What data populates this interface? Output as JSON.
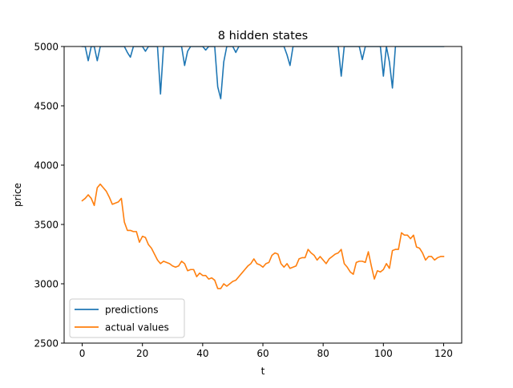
{
  "chart_data": {
    "type": "line",
    "title": "8 hidden states",
    "xlabel": "t",
    "ylabel": "price",
    "xlim": [
      -6,
      126
    ],
    "ylim": [
      2500,
      5000
    ],
    "xticks": [
      0,
      20,
      40,
      60,
      80,
      100,
      120
    ],
    "yticks": [
      2500,
      3000,
      3500,
      4000,
      4500,
      5000
    ],
    "grid": false,
    "legend_position": "lower-left",
    "series": [
      {
        "name": "predictions",
        "color": "#1f77b4",
        "x": [
          0,
          1,
          2,
          3,
          4,
          5,
          6,
          7,
          8,
          9,
          10,
          11,
          12,
          13,
          14,
          15,
          16,
          17,
          18,
          19,
          20,
          21,
          22,
          23,
          24,
          25,
          26,
          27,
          28,
          29,
          30,
          31,
          32,
          33,
          34,
          35,
          36,
          37,
          38,
          39,
          40,
          41,
          42,
          43,
          44,
          45,
          46,
          47,
          48,
          49,
          50,
          51,
          52,
          53,
          54,
          55,
          56,
          57,
          58,
          59,
          60,
          61,
          62,
          63,
          64,
          65,
          66,
          67,
          68,
          69,
          70,
          71,
          72,
          73,
          74,
          75,
          76,
          77,
          78,
          79,
          80,
          81,
          82,
          83,
          84,
          85,
          86,
          87,
          88,
          89,
          90,
          91,
          92,
          93,
          94,
          95,
          96,
          97,
          98,
          99,
          100,
          101,
          102,
          103,
          104,
          105,
          106,
          107,
          108,
          109,
          110,
          111,
          112,
          113,
          114,
          115,
          116,
          117,
          118,
          119,
          120
        ],
        "values": [
          5000,
          5000,
          4880,
          5000,
          5000,
          4880,
          5000,
          5000,
          5000,
          5000,
          5000,
          5000,
          5000,
          5000,
          5000,
          4950,
          4910,
          5000,
          5000,
          5000,
          5000,
          4960,
          5000,
          5000,
          5000,
          5000,
          4600,
          5000,
          5000,
          5000,
          5000,
          5000,
          5000,
          5000,
          4840,
          4960,
          5000,
          5000,
          5000,
          5000,
          5000,
          4970,
          5000,
          5000,
          5000,
          4660,
          4560,
          4870,
          5000,
          5000,
          5000,
          4950,
          5000,
          5000,
          5000,
          5000,
          5000,
          5000,
          5000,
          5000,
          5000,
          5000,
          5000,
          5000,
          5000,
          5000,
          5000,
          5000,
          4930,
          4840,
          5000,
          5000,
          5000,
          5000,
          5000,
          5000,
          5000,
          5000,
          5000,
          5000,
          5000,
          5000,
          5000,
          5000,
          5000,
          5000,
          4750,
          5000,
          5000,
          5000,
          5000,
          5000,
          5000,
          4890,
          5000,
          5000,
          5000,
          5000,
          5000,
          5000,
          4750,
          5000,
          4870,
          4650,
          5000,
          5000,
          5000,
          5000,
          5000,
          5000,
          5000,
          5000,
          5000,
          5000,
          5000,
          5000,
          5000,
          5000,
          5000,
          5000,
          5000
        ]
      },
      {
        "name": "actual values",
        "color": "#ff7f0e",
        "x": [
          0,
          1,
          2,
          3,
          4,
          5,
          6,
          7,
          8,
          9,
          10,
          11,
          12,
          13,
          14,
          15,
          16,
          17,
          18,
          19,
          20,
          21,
          22,
          23,
          24,
          25,
          26,
          27,
          28,
          29,
          30,
          31,
          32,
          33,
          34,
          35,
          36,
          37,
          38,
          39,
          40,
          41,
          42,
          43,
          44,
          45,
          46,
          47,
          48,
          49,
          50,
          51,
          52,
          53,
          54,
          55,
          56,
          57,
          58,
          59,
          60,
          61,
          62,
          63,
          64,
          65,
          66,
          67,
          68,
          69,
          70,
          71,
          72,
          73,
          74,
          75,
          76,
          77,
          78,
          79,
          80,
          81,
          82,
          83,
          84,
          85,
          86,
          87,
          88,
          89,
          90,
          91,
          92,
          93,
          94,
          95,
          96,
          97,
          98,
          99,
          100,
          101,
          102,
          103,
          104,
          105,
          106,
          107,
          108,
          109,
          110,
          111,
          112,
          113,
          114,
          115,
          116,
          117,
          118,
          119,
          120
        ],
        "values": [
          3700,
          3720,
          3750,
          3720,
          3660,
          3810,
          3840,
          3810,
          3780,
          3730,
          3670,
          3680,
          3690,
          3720,
          3520,
          3450,
          3450,
          3440,
          3440,
          3350,
          3400,
          3390,
          3330,
          3300,
          3250,
          3200,
          3170,
          3190,
          3180,
          3170,
          3150,
          3140,
          3150,
          3190,
          3170,
          3110,
          3120,
          3120,
          3060,
          3090,
          3070,
          3070,
          3040,
          3050,
          3030,
          2960,
          2960,
          3000,
          2980,
          3000,
          3020,
          3030,
          3060,
          3090,
          3120,
          3150,
          3170,
          3210,
          3170,
          3160,
          3140,
          3170,
          3180,
          3240,
          3260,
          3250,
          3170,
          3140,
          3170,
          3130,
          3140,
          3150,
          3210,
          3220,
          3220,
          3290,
          3260,
          3240,
          3200,
          3230,
          3200,
          3170,
          3210,
          3230,
          3250,
          3260,
          3290,
          3170,
          3140,
          3100,
          3080,
          3180,
          3190,
          3190,
          3180,
          3270,
          3150,
          3040,
          3110,
          3100,
          3120,
          3170,
          3130,
          3280,
          3290,
          3290,
          3430,
          3410,
          3410,
          3380,
          3410,
          3310,
          3300,
          3260,
          3200,
          3230,
          3230,
          3200,
          3220,
          3230,
          3230
        ]
      }
    ]
  }
}
